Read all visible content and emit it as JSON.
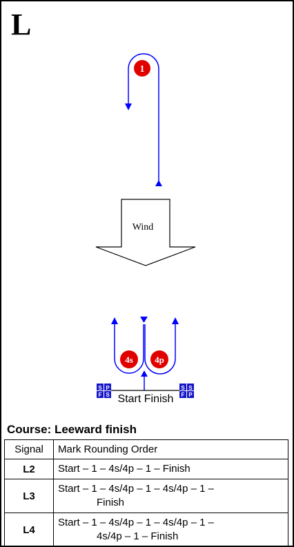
{
  "course_letter": "L",
  "diagram": {
    "wind_label": "Wind",
    "mark_1": "1",
    "mark_4s": "4s",
    "mark_4p": "4p",
    "left_flag": {
      "top_left": "S",
      "top_right": "P",
      "bottom_left": "F",
      "bottom_right": "S"
    },
    "right_flag": {
      "top_left": "S",
      "top_right": "S",
      "bottom_left": "F",
      "bottom_right": "P"
    },
    "start_finish_label": "Start Finish",
    "colors": {
      "route": "#0000ff",
      "mark": "#e00000",
      "flag": "#1515c8"
    }
  },
  "course_title": "Course: Leeward finish",
  "table": {
    "headers": [
      "Signal",
      "Mark Rounding Order"
    ],
    "rows": [
      {
        "signal": "L2",
        "line1": "Start – 1 – 4s/4p – 1 – Finish",
        "line2": ""
      },
      {
        "signal": "L3",
        "line1": "Start – 1 – 4s/4p – 1 – 4s/4p – 1 –",
        "line2": "Finish"
      },
      {
        "signal": "L4",
        "line1": "Start – 1 – 4s/4p – 1 – 4s/4p – 1 –",
        "line2": "4s/4p – 1 – Finish"
      }
    ]
  }
}
